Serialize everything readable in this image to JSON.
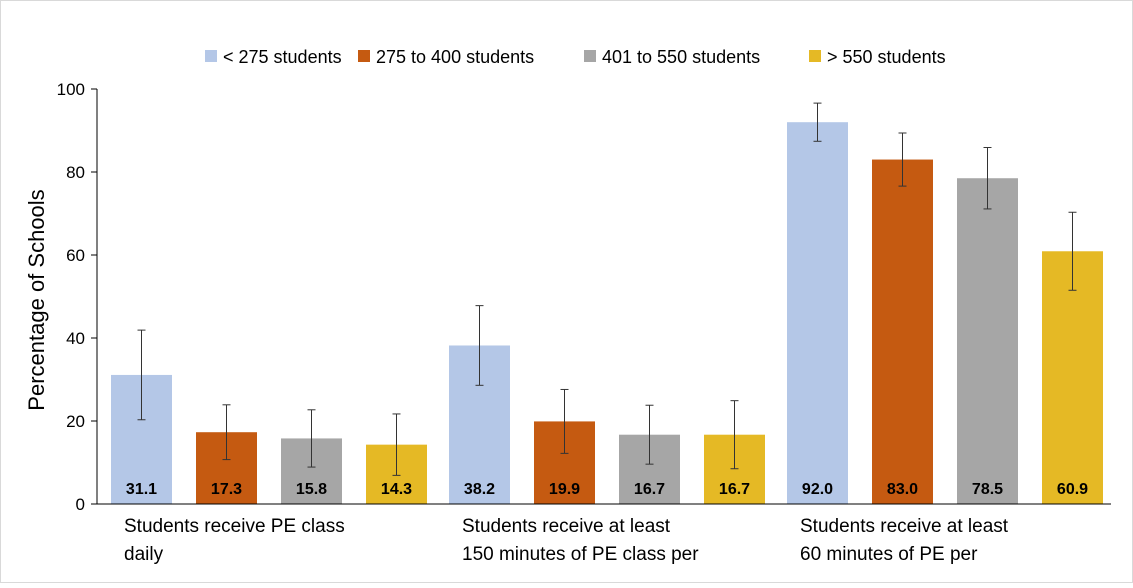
{
  "chart_data": {
    "type": "bar",
    "title": "",
    "xlabel": "",
    "ylabel": "Percentage of Schools",
    "ylim": [
      0,
      100
    ],
    "yticks": [
      0,
      20,
      40,
      60,
      80,
      100
    ],
    "grid": false,
    "legend_position": "top",
    "categories": [
      [
        "Students receive PE class",
        "daily"
      ],
      [
        "Students receive at least",
        "150 minutes of PE class per"
      ],
      [
        "Students receive at least",
        "60 minutes of PE per"
      ]
    ],
    "series": [
      {
        "name": "< 275 students",
        "color": "#b4c7e7",
        "values": [
          31.1,
          38.2,
          92.0
        ],
        "labels": [
          "31.1",
          "38.2",
          "92.0"
        ],
        "error_low": [
          20.3,
          28.6,
          87.4
        ],
        "error_high": [
          41.9,
          47.8,
          96.6
        ]
      },
      {
        "name": "275 to 400 students",
        "color": "#c55a11",
        "values": [
          17.3,
          19.9,
          83.0
        ],
        "labels": [
          "17.3",
          "19.9",
          "83.0"
        ],
        "error_low": [
          10.7,
          12.2,
          76.6
        ],
        "error_high": [
          23.9,
          27.6,
          89.4
        ]
      },
      {
        "name": "401 to 550 students",
        "color": "#a6a6a6",
        "values": [
          15.8,
          16.7,
          78.5
        ],
        "labels": [
          "15.8",
          "16.7",
          "78.5"
        ],
        "error_low": [
          8.9,
          9.6,
          71.1
        ],
        "error_high": [
          22.7,
          23.8,
          85.9
        ]
      },
      {
        "name": "> 550 students",
        "color": "#e5b925",
        "values": [
          14.3,
          16.7,
          60.9
        ],
        "labels": [
          "14.3",
          "16.7",
          "60.9"
        ],
        "error_low": [
          6.9,
          8.5,
          51.5
        ],
        "error_high": [
          21.7,
          24.9,
          70.3
        ]
      }
    ]
  }
}
